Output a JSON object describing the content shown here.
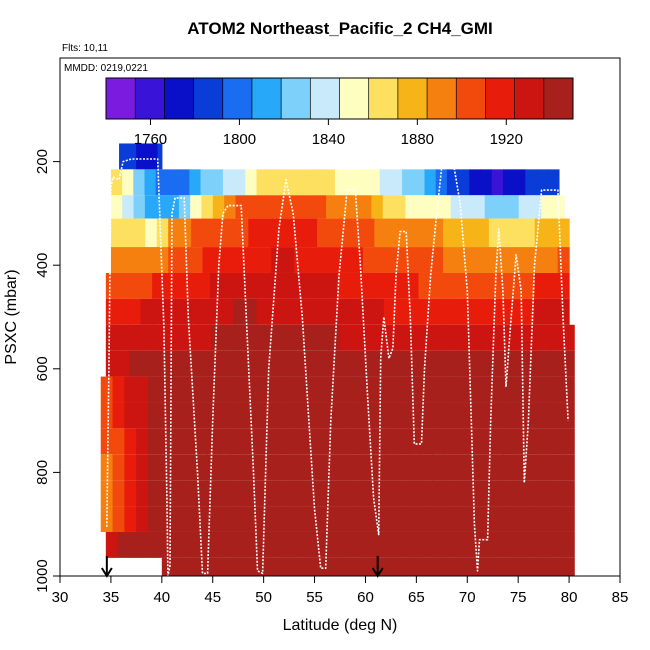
{
  "chart_data": {
    "type": "heatmap",
    "title": "ATOM2 Northeast_Pacific_2 CH4_GMI",
    "flights_label": "Flts: 10,11",
    "dates_label": "MMDD: 0219,0221",
    "xlabel": "Latitude (deg N)",
    "ylabel": "PSXC (mbar)",
    "xlim": [
      30,
      85
    ],
    "ylim": [
      1000,
      0
    ],
    "x_ticks": [
      "30",
      "35",
      "40",
      "45",
      "50",
      "55",
      "60",
      "65",
      "70",
      "75",
      "80",
      "85"
    ],
    "y_ticks": [
      "200",
      "400",
      "600",
      "800",
      "1000"
    ],
    "colorbar": {
      "min": 1740,
      "max": 1950,
      "ticks": [
        "1760",
        "1800",
        "1840",
        "1880",
        "1920"
      ],
      "colors": [
        "#7a1be0",
        "#3a14d6",
        "#0a10c8",
        "#0a3cd8",
        "#1a6cf0",
        "#28a8f8",
        "#7cd0fa",
        "#c8eafa",
        "#fefec0",
        "#fde060",
        "#f7b418",
        "#f58010",
        "#f24a0c",
        "#e81c0a",
        "#cc1410",
        "#a8201c"
      ]
    },
    "pressure_bands": [
      {
        "p_top": 165,
        "p_bottom": 215,
        "lat_start": 35.8,
        "lat_end": 40.0,
        "values": [
          1792,
          1790,
          1787,
          1784,
          1778,
          1773,
          1770,
          1768,
          1772,
          1780
        ]
      },
      {
        "p_top": 215,
        "p_bottom": 265,
        "lat_start": 35.0,
        "lat_end": 79.0,
        "values": [
          1860,
          1850,
          1830,
          1812,
          1800,
          1798,
          1805,
          1812,
          1820,
          1828,
          1836,
          1843,
          1850,
          1860,
          1866,
          1870,
          1870,
          1865,
          1862,
          1860,
          1858,
          1856,
          1852,
          1848,
          1842,
          1836,
          1828,
          1820,
          1810,
          1800,
          1790,
          1780,
          1775,
          1770,
          1765,
          1770,
          1776,
          1784,
          1790,
          1792
        ]
      },
      {
        "p_top": 265,
        "p_bottom": 310,
        "lat_start": 35.0,
        "lat_end": 79.5,
        "values": [
          1845,
          1835,
          1825,
          1818,
          1815,
          1818,
          1830,
          1850,
          1868,
          1880,
          1890,
          1898,
          1900,
          1902,
          1903,
          1903,
          1902,
          1900,
          1898,
          1895,
          1892,
          1890,
          1885,
          1878,
          1870,
          1862,
          1855,
          1850,
          1848,
          1846,
          1843,
          1840,
          1836,
          1830,
          1826,
          1828,
          1834,
          1840,
          1845,
          1848
        ]
      },
      {
        "p_top": 310,
        "p_bottom": 365,
        "lat_start": 35.0,
        "lat_end": 80.0,
        "values": [
          1870,
          1865,
          1860,
          1858,
          1870,
          1885,
          1893,
          1898,
          1902,
          1905,
          1908,
          1910,
          1912,
          1913,
          1914,
          1914,
          1913,
          1911,
          1909,
          1906,
          1903,
          1900,
          1898,
          1896,
          1894,
          1892,
          1890,
          1888,
          1885,
          1882,
          1879,
          1876,
          1873,
          1870,
          1868,
          1868,
          1870,
          1872,
          1874,
          1876
        ]
      },
      {
        "p_top": 365,
        "p_bottom": 415,
        "lat_start": 35.0,
        "lat_end": 80.0,
        "values": [
          1895,
          1892,
          1890,
          1893,
          1897,
          1902,
          1906,
          1910,
          1913,
          1915,
          1918,
          1920,
          1922,
          1923,
          1924,
          1924,
          1923,
          1922,
          1920,
          1918,
          1915,
          1912,
          1910,
          1908,
          1906,
          1904,
          1902,
          1900,
          1898,
          1896,
          1894,
          1892,
          1891,
          1890,
          1891,
          1892,
          1893,
          1894,
          1896,
          1898
        ]
      },
      {
        "p_top": 415,
        "p_bottom": 465,
        "lat_start": 34.5,
        "lat_end": 80.0,
        "values": [
          1905,
          1906,
          1908,
          1910,
          1912,
          1915,
          1918,
          1920,
          1922,
          1924,
          1926,
          1928,
          1929,
          1930,
          1930,
          1930,
          1929,
          1928,
          1926,
          1924,
          1922,
          1920,
          1918,
          1916,
          1914,
          1912,
          1911,
          1910,
          1909,
          1908,
          1907,
          1907,
          1906,
          1906,
          1907,
          1908,
          1910,
          1912,
          1914,
          1915
        ]
      },
      {
        "p_top": 465,
        "p_bottom": 515,
        "lat_start": 34.5,
        "lat_end": 80.0,
        "values": [
          1920,
          1921,
          1922,
          1924,
          1926,
          1928,
          1930,
          1932,
          1934,
          1935,
          1936,
          1937,
          1937,
          1936,
          1936,
          1935,
          1934,
          1933,
          1932,
          1930,
          1929,
          1928,
          1926,
          1924,
          1922,
          1920,
          1919,
          1918,
          1918,
          1918,
          1918,
          1918,
          1919,
          1920,
          1921,
          1922,
          1923,
          1924,
          1925,
          1926
        ]
      },
      {
        "p_top": 515,
        "p_bottom": 565,
        "lat_start": 34.5,
        "lat_end": 80.5,
        "values": [
          1928,
          1929,
          1930,
          1931,
          1932,
          1933,
          1934,
          1935,
          1936,
          1937,
          1938,
          1939,
          1939,
          1940,
          1940,
          1940,
          1939,
          1939,
          1938,
          1937,
          1936,
          1935,
          1934,
          1933,
          1932,
          1931,
          1930,
          1930,
          1929,
          1929,
          1929,
          1930,
          1930,
          1931,
          1932,
          1933,
          1934,
          1935,
          1936,
          1936
        ]
      },
      {
        "p_top": 565,
        "p_bottom": 615,
        "lat_start": 34.5,
        "lat_end": 80.5,
        "values": [
          1935,
          1936,
          1937,
          1937,
          1938,
          1939,
          1940,
          1941,
          1941,
          1942,
          1942,
          1943,
          1943,
          1943,
          1943,
          1943,
          1942,
          1942,
          1941,
          1941,
          1940,
          1940,
          1939,
          1938,
          1938,
          1937,
          1937,
          1937,
          1937,
          1937,
          1937,
          1938,
          1938,
          1939,
          1939,
          1940,
          1940,
          1941,
          1941,
          1942
        ]
      },
      {
        "p_top": 615,
        "p_bottom": 665,
        "lat_start": 34.0,
        "lat_end": 80.5,
        "values": [
          1905,
          1915,
          1925,
          1932,
          1937,
          1940,
          1942,
          1943,
          1944,
          1944,
          1945,
          1945,
          1945,
          1945,
          1945,
          1945,
          1945,
          1944,
          1944,
          1944,
          1943,
          1943,
          1942,
          1942,
          1941,
          1941,
          1941,
          1941,
          1941,
          1942,
          1942,
          1942,
          1943,
          1943,
          1944,
          1944,
          1944,
          1945,
          1945,
          1945
        ]
      },
      {
        "p_top": 665,
        "p_bottom": 715,
        "lat_start": 34.0,
        "lat_end": 80.5,
        "values": [
          1900,
          1912,
          1924,
          1934,
          1940,
          1943,
          1944,
          1945,
          1946,
          1946,
          1946,
          1946,
          1946,
          1946,
          1946,
          1946,
          1946,
          1946,
          1946,
          1945,
          1945,
          1945,
          1945,
          1944,
          1944,
          1944,
          1944,
          1944,
          1944,
          1944,
          1944,
          1945,
          1945,
          1945,
          1945,
          1946,
          1946,
          1946,
          1946,
          1946
        ]
      },
      {
        "p_top": 715,
        "p_bottom": 765,
        "lat_start": 34.0,
        "lat_end": 80.5,
        "values": [
          1898,
          1910,
          1922,
          1934,
          1941,
          1944,
          1946,
          1947,
          1947,
          1947,
          1947,
          1947,
          1947,
          1947,
          1947,
          1947,
          1947,
          1947,
          1947,
          1947,
          1947,
          1947,
          1946,
          1946,
          1946,
          1946,
          1946,
          1946,
          1946,
          1946,
          1946,
          1946,
          1946,
          1946,
          1946,
          1947,
          1947,
          1947,
          1947,
          1947
        ]
      },
      {
        "p_top": 765,
        "p_bottom": 815,
        "lat_start": 34.0,
        "lat_end": 80.5,
        "values": [
          1895,
          1908,
          1920,
          1934,
          1942,
          1945,
          1947,
          1948,
          1948,
          1948,
          1948,
          1948,
          1948,
          1948,
          1948,
          1948,
          1948,
          1948,
          1948,
          1948,
          1948,
          1948,
          1948,
          1947,
          1947,
          1947,
          1947,
          1947,
          1947,
          1947,
          1947,
          1947,
          1947,
          1947,
          1948,
          1948,
          1948,
          1948,
          1948,
          1948
        ]
      },
      {
        "p_top": 815,
        "p_bottom": 865,
        "lat_start": 34.0,
        "lat_end": 80.5,
        "values": [
          1893,
          1906,
          1920,
          1934,
          1943,
          1946,
          1948,
          1949,
          1949,
          1949,
          1949,
          1949,
          1949,
          1949,
          1949,
          1949,
          1949,
          1949,
          1949,
          1949,
          1949,
          1949,
          1949,
          1948,
          1948,
          1948,
          1948,
          1948,
          1948,
          1948,
          1948,
          1948,
          1948,
          1948,
          1948,
          1949,
          1949,
          1949,
          1949,
          1949
        ]
      },
      {
        "p_top": 865,
        "p_bottom": 915,
        "lat_start": 34.0,
        "lat_end": 80.5,
        "values": [
          1890,
          1905,
          1920,
          1934,
          1944,
          1947,
          1949,
          1949,
          1950,
          1950,
          1950,
          1950,
          1950,
          1950,
          1950,
          1950,
          1950,
          1950,
          1950,
          1950,
          1950,
          1950,
          1949,
          1949,
          1949,
          1949,
          1949,
          1949,
          1949,
          1949,
          1949,
          1949,
          1949,
          1949,
          1949,
          1950,
          1950,
          1950,
          1950,
          1950
        ]
      },
      {
        "p_top": 915,
        "p_bottom": 965,
        "lat_start": 34.5,
        "lat_end": 80.5,
        "values": [
          1932,
          1938,
          1944,
          1946,
          1948,
          1949,
          1950,
          1950,
          1950,
          1950,
          1950,
          1950,
          1950,
          1950,
          1950,
          1950,
          1950,
          1950,
          1950,
          1950,
          1950,
          1950,
          1950,
          1950,
          1950,
          1950,
          1950,
          1950,
          1950,
          1950,
          1950,
          1950,
          1950,
          1950,
          1950,
          1950,
          1950,
          1950,
          1950,
          1950
        ]
      },
      {
        "p_top": 965,
        "p_bottom": 1000,
        "lat_start": 40.0,
        "lat_end": 80.5,
        "values": [
          1950,
          1950,
          1950,
          1950,
          1950,
          1950,
          1950,
          1950,
          1950,
          1950,
          1950,
          1950,
          1950,
          1950,
          1950,
          1950,
          1950,
          1950,
          1950,
          1950,
          1950,
          1950,
          1950,
          1950,
          1950,
          1950,
          1950,
          1950,
          1950,
          1950,
          1950,
          1950,
          1950,
          1950,
          1950,
          1950,
          1950,
          1950,
          1950,
          1950
        ]
      }
    ],
    "flight_track": [
      [
        34.6,
        905
      ],
      [
        34.8,
        600
      ],
      [
        35.0,
        250
      ],
      [
        35.2,
        230
      ],
      [
        35.8,
        235
      ],
      [
        36.2,
        200
      ],
      [
        37.0,
        195
      ],
      [
        39.6,
        195
      ],
      [
        40.2,
        520
      ],
      [
        40.5,
        850
      ],
      [
        40.6,
        1000
      ],
      [
        40.8,
        980
      ],
      [
        41.0,
        300
      ],
      [
        41.3,
        270
      ],
      [
        42.2,
        270
      ],
      [
        42.6,
        500
      ],
      [
        43.5,
        800
      ],
      [
        44.0,
        995
      ],
      [
        44.5,
        995
      ],
      [
        45.0,
        700
      ],
      [
        45.6,
        400
      ],
      [
        46.0,
        300
      ],
      [
        46.5,
        285
      ],
      [
        47.8,
        285
      ],
      [
        48.3,
        500
      ],
      [
        49.0,
        800
      ],
      [
        49.4,
        990
      ],
      [
        49.9,
        995
      ],
      [
        50.5,
        600
      ],
      [
        51.5,
        330
      ],
      [
        52.2,
        235
      ],
      [
        52.9,
        300
      ],
      [
        53.8,
        500
      ],
      [
        54.6,
        750
      ],
      [
        55.0,
        870
      ],
      [
        55.6,
        985
      ],
      [
        56.1,
        985
      ],
      [
        56.6,
        700
      ],
      [
        57.4,
        420
      ],
      [
        58.2,
        255
      ],
      [
        59.0,
        255
      ],
      [
        59.5,
        400
      ],
      [
        60.2,
        650
      ],
      [
        60.8,
        850
      ],
      [
        61.3,
        920
      ],
      [
        61.5,
        580
      ],
      [
        61.8,
        500
      ],
      [
        62.3,
        580
      ],
      [
        62.7,
        560
      ],
      [
        63.0,
        420
      ],
      [
        63.4,
        335
      ],
      [
        64.0,
        335
      ],
      [
        64.4,
        500
      ],
      [
        64.8,
        745
      ],
      [
        65.5,
        745
      ],
      [
        65.8,
        600
      ],
      [
        66.4,
        420
      ],
      [
        67.0,
        300
      ],
      [
        67.5,
        210
      ],
      [
        68.7,
        210
      ],
      [
        69.3,
        280
      ],
      [
        70.0,
        450
      ],
      [
        70.4,
        700
      ],
      [
        70.7,
        900
      ],
      [
        71.0,
        990
      ],
      [
        71.2,
        930
      ],
      [
        72.0,
        930
      ],
      [
        72.3,
        700
      ],
      [
        72.8,
        420
      ],
      [
        73.1,
        330
      ],
      [
        73.5,
        450
      ],
      [
        73.8,
        635
      ],
      [
        74.2,
        530
      ],
      [
        74.8,
        380
      ],
      [
        75.3,
        450
      ],
      [
        75.6,
        820
      ],
      [
        76.0,
        700
      ],
      [
        76.6,
        400
      ],
      [
        77.3,
        255
      ],
      [
        78.9,
        255
      ],
      [
        79.4,
        500
      ],
      [
        79.9,
        700
      ]
    ],
    "markers": [
      {
        "lat": 34.6,
        "label": "start-arrow"
      },
      {
        "lat": 61.2,
        "label": "end-arrow"
      }
    ],
    "grid": false,
    "legend": "colorbar top"
  }
}
